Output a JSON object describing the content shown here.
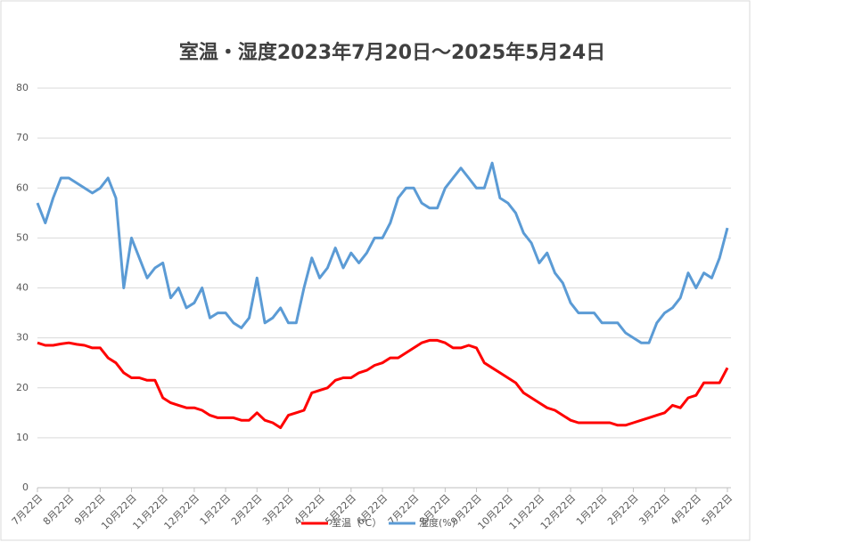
{
  "chart_data": {
    "type": "line",
    "title": "室温・湿度2023年7月20日～2025年5月24日",
    "categories": [
      "7月22日",
      null,
      null,
      null,
      "8月22日",
      null,
      null,
      null,
      "9月22日",
      null,
      null,
      null,
      "10月22日",
      null,
      null,
      null,
      "11月22日",
      null,
      null,
      null,
      "12月22日",
      null,
      null,
      null,
      "1月22日",
      null,
      null,
      null,
      "2月22日",
      null,
      null,
      null,
      "3月22日",
      null,
      null,
      null,
      "4月22日",
      null,
      null,
      null,
      "5月22日",
      null,
      null,
      null,
      "6月22日",
      null,
      null,
      null,
      "7月22日",
      null,
      null,
      null,
      "8月22日",
      null,
      null,
      null,
      "9月22日",
      null,
      null,
      null,
      "10月22日",
      null,
      null,
      null,
      "11月22日",
      null,
      null,
      null,
      "12月22日",
      null,
      null,
      null,
      "1月22日",
      null,
      null,
      null,
      "2月22日",
      null,
      null,
      null,
      "3月22日",
      null,
      null,
      null,
      "4月22日",
      null,
      null,
      null,
      "5月22日"
    ],
    "series": [
      {
        "name": "室温（℃）",
        "color": "#ff0000",
        "values": [
          29,
          28.5,
          28.5,
          28.8,
          29,
          28.7,
          28.5,
          28,
          28,
          26,
          25,
          23,
          22,
          22,
          21.5,
          21.5,
          18,
          17,
          16.5,
          16,
          16,
          15.5,
          14.5,
          14,
          14,
          14,
          13.5,
          13.5,
          15,
          13.5,
          13,
          12,
          14.5,
          15,
          15.5,
          19,
          19.5,
          20,
          21.5,
          22,
          22,
          23,
          23.5,
          24.5,
          25,
          26,
          26,
          27,
          28,
          29,
          29.5,
          29.5,
          29,
          28,
          28,
          28.5,
          28,
          25,
          24,
          23,
          22,
          21,
          19,
          18,
          17,
          16,
          15.5,
          14.5,
          13.5,
          13,
          13,
          13,
          13,
          13,
          12.5,
          12.5,
          13,
          13.5,
          14,
          14.5,
          15,
          16.5,
          16,
          18,
          18.5,
          21,
          21,
          21,
          24
        ]
      },
      {
        "name": "湿度(%)",
        "color": "#5b9bd5",
        "values": [
          57,
          53,
          58,
          62,
          62,
          61,
          60,
          59,
          60,
          62,
          58,
          40,
          50,
          46,
          42,
          44,
          45,
          38,
          40,
          36,
          37,
          40,
          34,
          35,
          35,
          33,
          32,
          34,
          42,
          33,
          34,
          36,
          33,
          33,
          40,
          46,
          42,
          44,
          48,
          44,
          47,
          45,
          47,
          50,
          50,
          53,
          58,
          60,
          60,
          57,
          56,
          56,
          60,
          62,
          64,
          62,
          60,
          60,
          65,
          58,
          57,
          55,
          51,
          49,
          45,
          47,
          43,
          41,
          37,
          35,
          35,
          35,
          33,
          33,
          33,
          31,
          30,
          29,
          29,
          33,
          35,
          36,
          38,
          43,
          40,
          43,
          42,
          46,
          52
        ]
      }
    ],
    "ylim": [
      0,
      80
    ],
    "yticks": [
      0,
      10,
      20,
      30,
      40,
      50,
      60,
      70,
      80
    ],
    "grid": true,
    "legend": "bottom"
  }
}
